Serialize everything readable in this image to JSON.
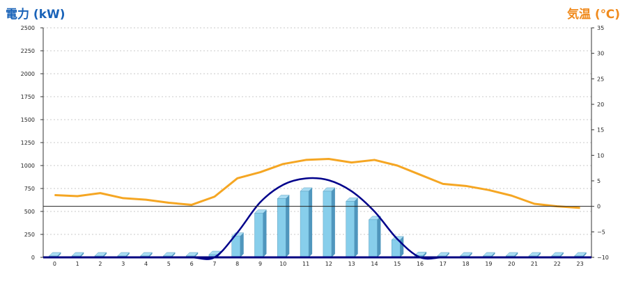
{
  "chart_data": {
    "type": "bar",
    "y1label": "電力 (kW)",
    "y2label": "気温 (℃)",
    "categories": [
      "0",
      "1",
      "2",
      "3",
      "4",
      "5",
      "6",
      "7",
      "8",
      "9",
      "10",
      "11",
      "12",
      "13",
      "14",
      "15",
      "16",
      "17",
      "18",
      "19",
      "20",
      "21",
      "22",
      "23"
    ],
    "y1lim": [
      0,
      2500
    ],
    "y1ticks": [
      0,
      250,
      500,
      750,
      1000,
      1250,
      1500,
      1750,
      2000,
      2250,
      2500
    ],
    "y2lim": [
      -10,
      35
    ],
    "y2ticks": [
      -10,
      -5,
      0,
      5,
      10,
      15,
      20,
      25,
      30,
      35
    ],
    "grid": true,
    "series": [
      {
        "kind": "bar",
        "axis": "left",
        "color": "#87ceeb",
        "values": [
          0,
          0,
          0,
          0,
          0,
          0,
          0,
          30,
          230,
          480,
          640,
          720,
          720,
          610,
          410,
          190,
          20,
          0,
          0,
          0,
          0,
          0,
          0,
          0
        ]
      },
      {
        "kind": "line",
        "axis": "left",
        "color": "#00008b",
        "values": [
          0,
          0,
          0,
          0,
          0,
          0,
          0,
          0,
          270,
          600,
          790,
          860,
          840,
          720,
          500,
          200,
          0,
          0,
          0,
          0,
          0,
          0,
          0,
          0
        ]
      },
      {
        "kind": "line",
        "axis": "right",
        "color": "#f5a623",
        "values": [
          2.2,
          2.0,
          2.6,
          1.6,
          1.3,
          0.7,
          0.3,
          1.9,
          5.5,
          6.7,
          8.3,
          9.1,
          9.3,
          8.6,
          9.1,
          8.0,
          6.2,
          4.4,
          4.0,
          3.2,
          2.1,
          0.5,
          0.0,
          -0.3
        ]
      }
    ]
  }
}
